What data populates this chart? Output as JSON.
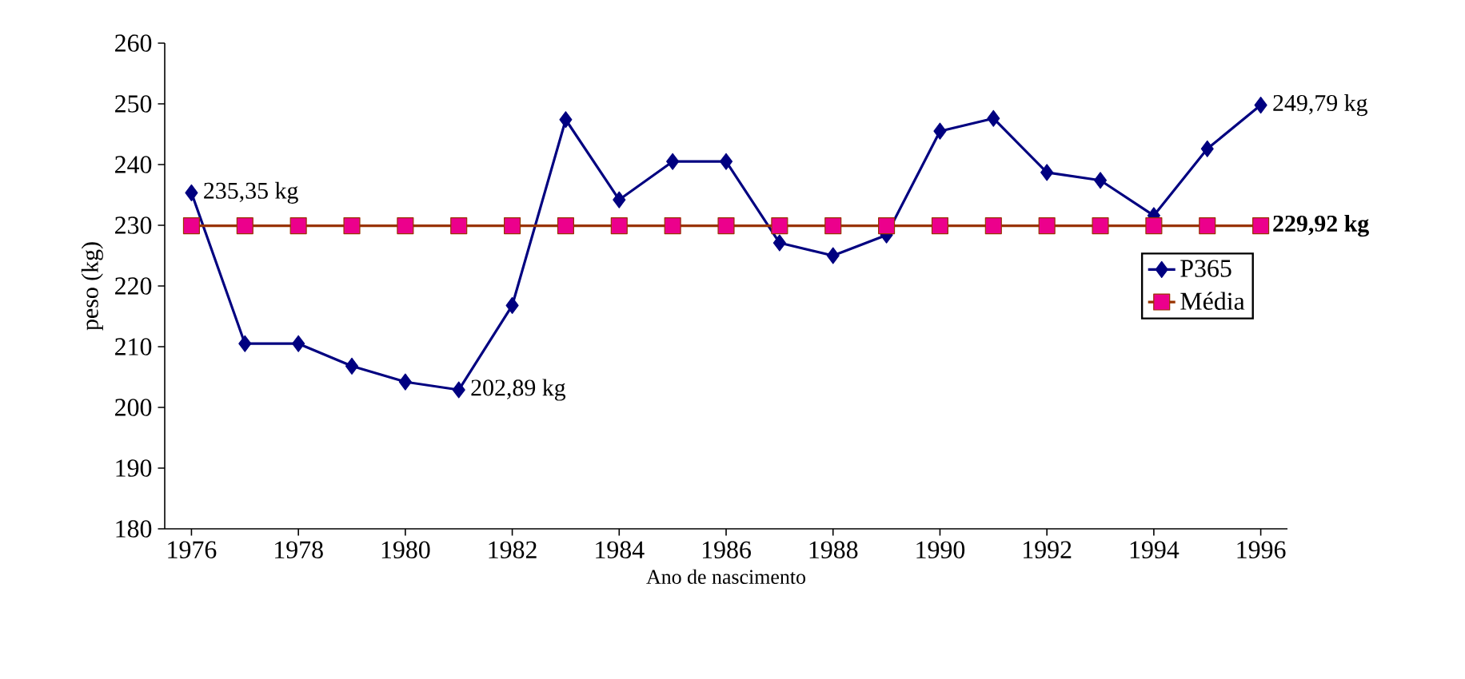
{
  "chart_data": {
    "type": "line",
    "xlabel": "Ano de nascimento",
    "ylabel": "peso (kg)",
    "x": [
      1976,
      1977,
      1978,
      1979,
      1980,
      1981,
      1982,
      1983,
      1984,
      1985,
      1986,
      1987,
      1988,
      1989,
      1990,
      1991,
      1992,
      1993,
      1994,
      1995,
      1996
    ],
    "xlim": [
      1975.5,
      1996.5
    ],
    "xticks": [
      1976,
      1978,
      1980,
      1982,
      1984,
      1986,
      1988,
      1990,
      1992,
      1994,
      1996
    ],
    "ylim": [
      180,
      260
    ],
    "yticks": [
      180,
      190,
      200,
      210,
      220,
      230,
      240,
      250,
      260
    ],
    "legend": "right",
    "series": [
      {
        "name": "P365",
        "color": "#000080",
        "marker": "diamond",
        "values": [
          235.35,
          210.5,
          210.5,
          206.8,
          204.2,
          202.89,
          216.8,
          247.4,
          234.2,
          240.5,
          240.5,
          227.1,
          225.0,
          228.4,
          245.5,
          247.6,
          238.7,
          237.4,
          231.6,
          242.6,
          249.79
        ],
        "value_labels": [
          "235,35 kg",
          null,
          null,
          null,
          null,
          "202,89 kg",
          null,
          null,
          null,
          null,
          null,
          null,
          null,
          null,
          null,
          null,
          null,
          null,
          null,
          null,
          "249,79 kg"
        ]
      },
      {
        "name": "Média",
        "color": "#993300",
        "marker": "square",
        "values": [
          229.92,
          229.92,
          229.92,
          229.92,
          229.92,
          229.92,
          229.92,
          229.92,
          229.92,
          229.92,
          229.92,
          229.92,
          229.92,
          229.92,
          229.92,
          229.92,
          229.92,
          229.92,
          229.92,
          229.92,
          229.92
        ],
        "value_labels": [
          null,
          null,
          null,
          null,
          null,
          null,
          null,
          null,
          null,
          null,
          null,
          null,
          null,
          null,
          null,
          null,
          null,
          null,
          null,
          null,
          "**229,92 kg**"
        ]
      }
    ]
  }
}
